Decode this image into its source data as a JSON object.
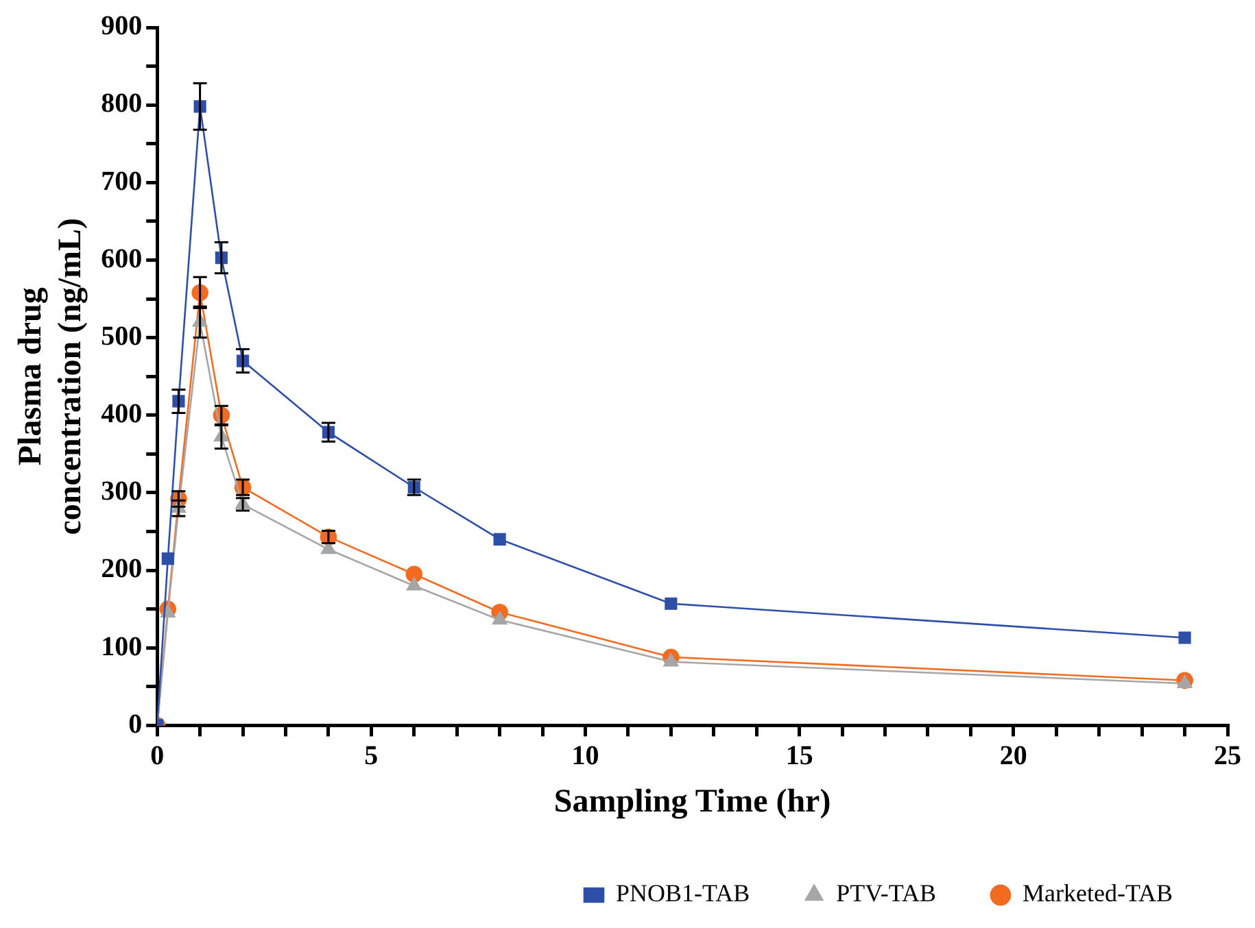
{
  "chart_data": {
    "type": "line",
    "xlabel": "Sampling Time (hr)",
    "ylabel": "Plasma drug concentration (ng/mL)",
    "x": [
      0,
      0.25,
      0.5,
      1,
      1.5,
      2,
      4,
      6,
      8,
      12,
      24
    ],
    "series": [
      {
        "name": "PNOB1-TAB",
        "color": "#2e4fa8",
        "marker": "square",
        "values": [
          0,
          215,
          418,
          798,
          603,
          470,
          378,
          307,
          240,
          157,
          113
        ],
        "errors": [
          null,
          null,
          15,
          30,
          20,
          15,
          12,
          10,
          null,
          null,
          null
        ]
      },
      {
        "name": "PTV-TAB",
        "color": "#a6a6a6",
        "marker": "triangle",
        "values": [
          0,
          145,
          280,
          520,
          372,
          285,
          227,
          180,
          136,
          82,
          54
        ],
        "errors": [
          null,
          null,
          10,
          20,
          15,
          8,
          null,
          null,
          null,
          null,
          null
        ]
      },
      {
        "name": "Marketed-TAB",
        "color": "#f26b21",
        "marker": "circle",
        "values": [
          0,
          150,
          292,
          558,
          400,
          307,
          243,
          195,
          146,
          88,
          58
        ],
        "errors": [
          null,
          null,
          10,
          20,
          12,
          10,
          8,
          null,
          null,
          null,
          null
        ]
      }
    ],
    "xlim": [
      0,
      25
    ],
    "ylim": [
      0,
      900
    ],
    "xticks": [
      0,
      {
        "value": 1,
        "label": null
      },
      {
        "value": 2,
        "label": null
      },
      {
        "value": 3,
        "label": null
      },
      {
        "value": 4,
        "label": null
      },
      5,
      {
        "value": 6,
        "label": null
      },
      {
        "value": 7,
        "label": null
      },
      {
        "value": 8,
        "label": null
      },
      {
        "value": 9,
        "label": null
      },
      10,
      {
        "value": 11,
        "label": null
      },
      {
        "value": 12,
        "label": null
      },
      {
        "value": 13,
        "label": null
      },
      {
        "value": 14,
        "label": null
      },
      15,
      {
        "value": 16,
        "label": null
      },
      {
        "value": 17,
        "label": null
      },
      {
        "value": 18,
        "label": null
      },
      {
        "value": 19,
        "label": null
      },
      20,
      {
        "value": 21,
        "label": null
      },
      {
        "value": 22,
        "label": null
      },
      {
        "value": 23,
        "label": null
      },
      {
        "value": 24,
        "label": null
      },
      25
    ],
    "yticks": [
      0,
      {
        "value": 50,
        "label": null
      },
      100,
      {
        "value": 150,
        "label": null
      },
      200,
      {
        "value": 250,
        "label": null
      },
      300,
      {
        "value": 350,
        "label": null
      },
      400,
      {
        "value": 450,
        "label": null
      },
      500,
      {
        "value": 550,
        "label": null
      },
      600,
      {
        "value": 650,
        "label": null
      },
      700,
      {
        "value": 750,
        "label": null
      },
      800,
      {
        "value": 850,
        "label": null
      },
      900
    ],
    "grid": false,
    "legend": "bottom",
    "line_style": "solid"
  }
}
